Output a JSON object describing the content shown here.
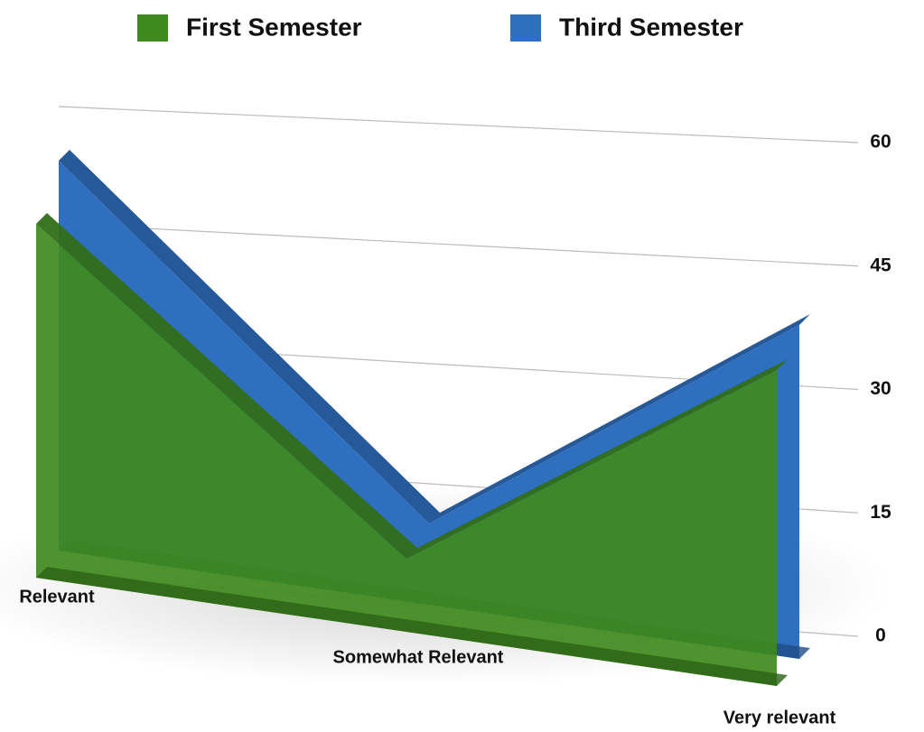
{
  "chart_data": {
    "type": "area3d",
    "categories": [
      "Relevant",
      "Somewhat Relevant",
      "Very relevant"
    ],
    "series": [
      {
        "name": "First Semester",
        "color": "#3f8a1e",
        "values": [
          49,
          9,
          35
        ]
      },
      {
        "name": "Third Semester",
        "color": "#2f6fc0",
        "values": [
          54,
          10,
          37
        ]
      }
    ],
    "ylim": [
      0,
      60
    ],
    "yticks": [
      0,
      15,
      30,
      45,
      60
    ],
    "grid": true
  }
}
